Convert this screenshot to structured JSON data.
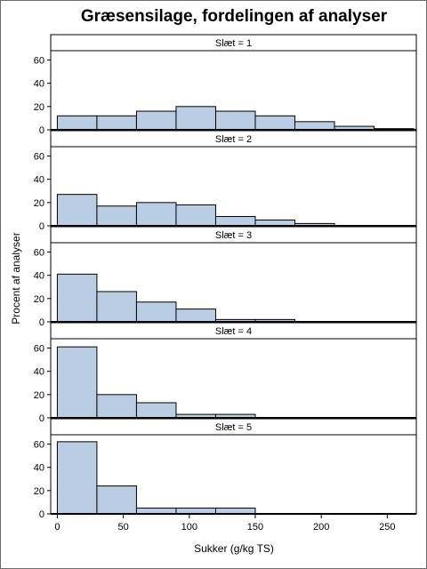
{
  "chart_data": {
    "type": "bar",
    "title": "Græsensilage, fordelingen af analyser",
    "xlabel": "Sukker (g/kg TS)",
    "ylabel": "Procent af analyser",
    "xlim": [
      -5,
      272
    ],
    "ylim": [
      0,
      68
    ],
    "x_ticks": [
      0,
      50,
      100,
      150,
      200,
      250
    ],
    "y_ticks": [
      0,
      20,
      40,
      60
    ],
    "bin_edges": [
      0,
      30,
      60,
      90,
      120,
      150,
      180,
      210,
      240,
      270
    ],
    "bar_color": "#b9cde5",
    "panels": [
      {
        "label": "Slæt = 1",
        "values": [
          12,
          12,
          16,
          20,
          16,
          12,
          7,
          3,
          1
        ]
      },
      {
        "label": "Slæt = 2",
        "values": [
          27,
          17,
          20,
          18,
          8,
          5,
          2,
          0,
          0
        ]
      },
      {
        "label": "Slæt = 3",
        "values": [
          41,
          26,
          17,
          11,
          2,
          2,
          0,
          0,
          0
        ]
      },
      {
        "label": "Slæt = 4",
        "values": [
          61,
          20,
          13,
          3,
          3,
          0,
          0,
          0,
          0
        ]
      },
      {
        "label": "Slæt = 5",
        "values": [
          62,
          24,
          5,
          5,
          5,
          0,
          0,
          0,
          0
        ]
      }
    ]
  }
}
